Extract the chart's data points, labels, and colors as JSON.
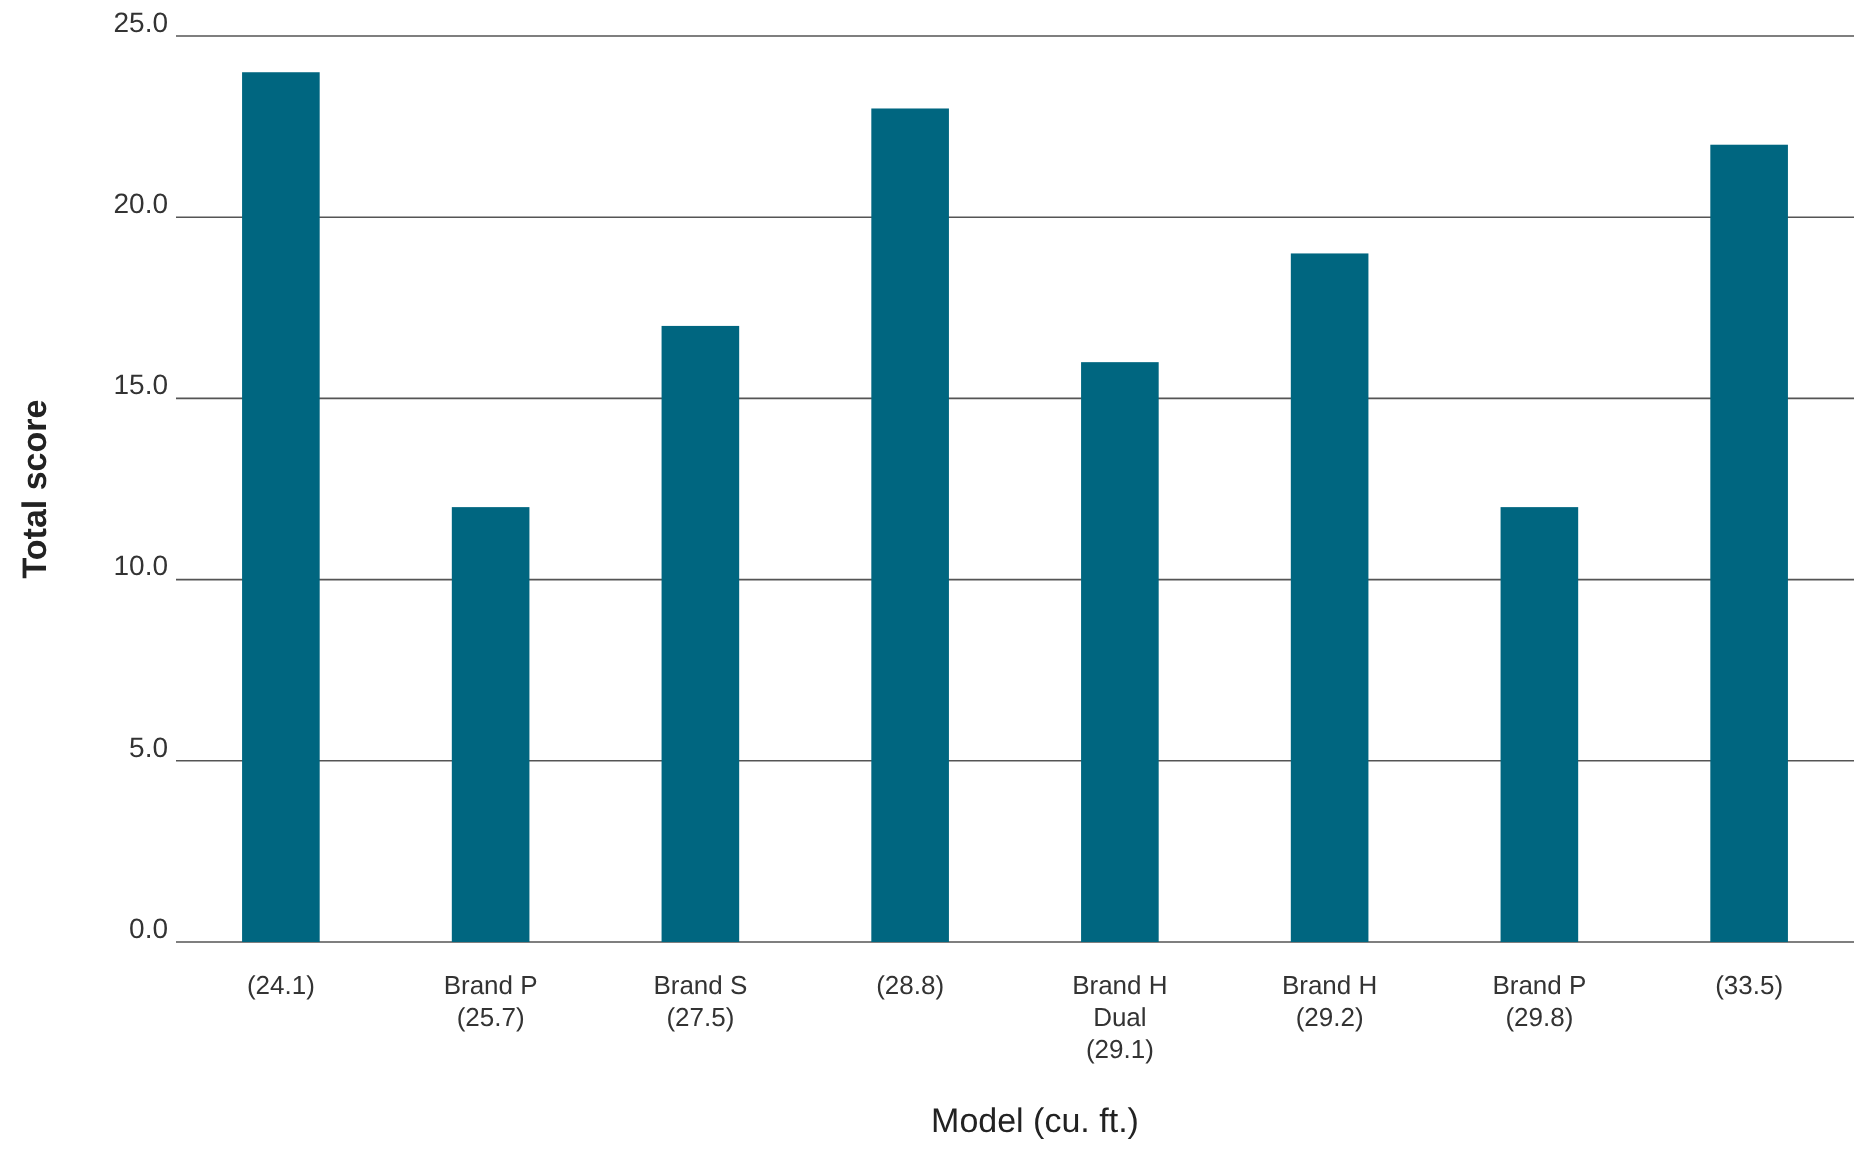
{
  "chart_data": {
    "type": "bar",
    "xlabel": "Model (cu. ft.)",
    "ylabel": "Total score",
    "categories": [
      "(24.1)",
      "Brand P\n(25.7)",
      "Brand S\n(27.5)",
      "(28.8)",
      "Brand H\nDual\n(29.1)",
      "Brand H\n(29.2)",
      "Brand P\n(29.8)",
      "(33.5)"
    ],
    "values": [
      24,
      12,
      17,
      23,
      16,
      19,
      12,
      22
    ],
    "color": "#006680",
    "ylim": [
      0,
      25
    ],
    "yticks": [
      {
        "value": 0,
        "label": "0.0"
      },
      {
        "value": 5,
        "label": "5.0"
      },
      {
        "value": 10,
        "label": "10.0"
      },
      {
        "value": 15,
        "label": "15.0"
      },
      {
        "value": 20,
        "label": "20.0"
      },
      {
        "value": 25,
        "label": "25.0"
      }
    ],
    "grid": "y"
  }
}
